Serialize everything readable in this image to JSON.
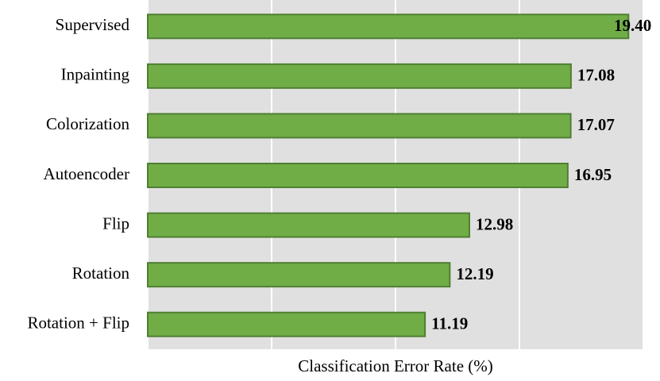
{
  "chart_data": {
    "type": "barh",
    "xlabel": "Classification Error Rate (%)",
    "categories": [
      "Supervised",
      "Inpainting",
      "Colorization",
      "Autoencoder",
      "Flip",
      "Rotation",
      "Rotation + Flip"
    ],
    "values": [
      19.4,
      17.08,
      17.07,
      16.95,
      12.98,
      12.19,
      11.19
    ],
    "value_labels": [
      "19.40",
      "17.08",
      "17.07",
      "16.95",
      "12.98",
      "12.19",
      "11.19"
    ],
    "color": "#70ad47",
    "xlim": [
      0,
      20
    ],
    "xticks": [
      0,
      5,
      10,
      15,
      20
    ],
    "grid": true,
    "xtick_labels": false
  }
}
